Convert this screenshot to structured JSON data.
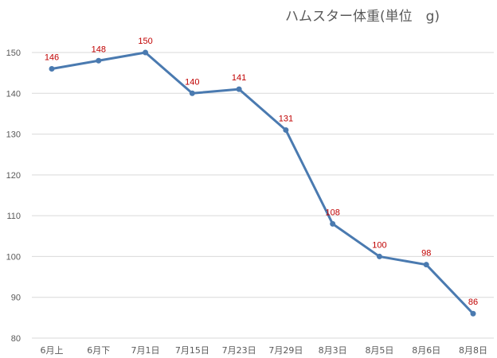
{
  "colors": {
    "series": "#4a7ab0",
    "label": "#c00000",
    "grid": "#d9d9d9",
    "text": "#595959"
  },
  "chart_data": {
    "type": "line",
    "title": "ハムスター体重(単位　g)",
    "xlabel": "",
    "ylabel": "",
    "categories": [
      "6月上",
      "6月下",
      "7月1日",
      "7月15日",
      "7月23日",
      "7月29日",
      "8月3日",
      "8月5日",
      "8月6日",
      "8月8日"
    ],
    "series": [
      {
        "values": [
          146,
          148,
          150,
          140,
          141,
          131,
          108,
          100,
          98,
          86
        ]
      }
    ],
    "ylim": [
      80,
      155
    ],
    "yticks": [
      80,
      90,
      100,
      110,
      120,
      130,
      140,
      150
    ],
    "grid": true,
    "legend": "none",
    "data_labels": true
  }
}
